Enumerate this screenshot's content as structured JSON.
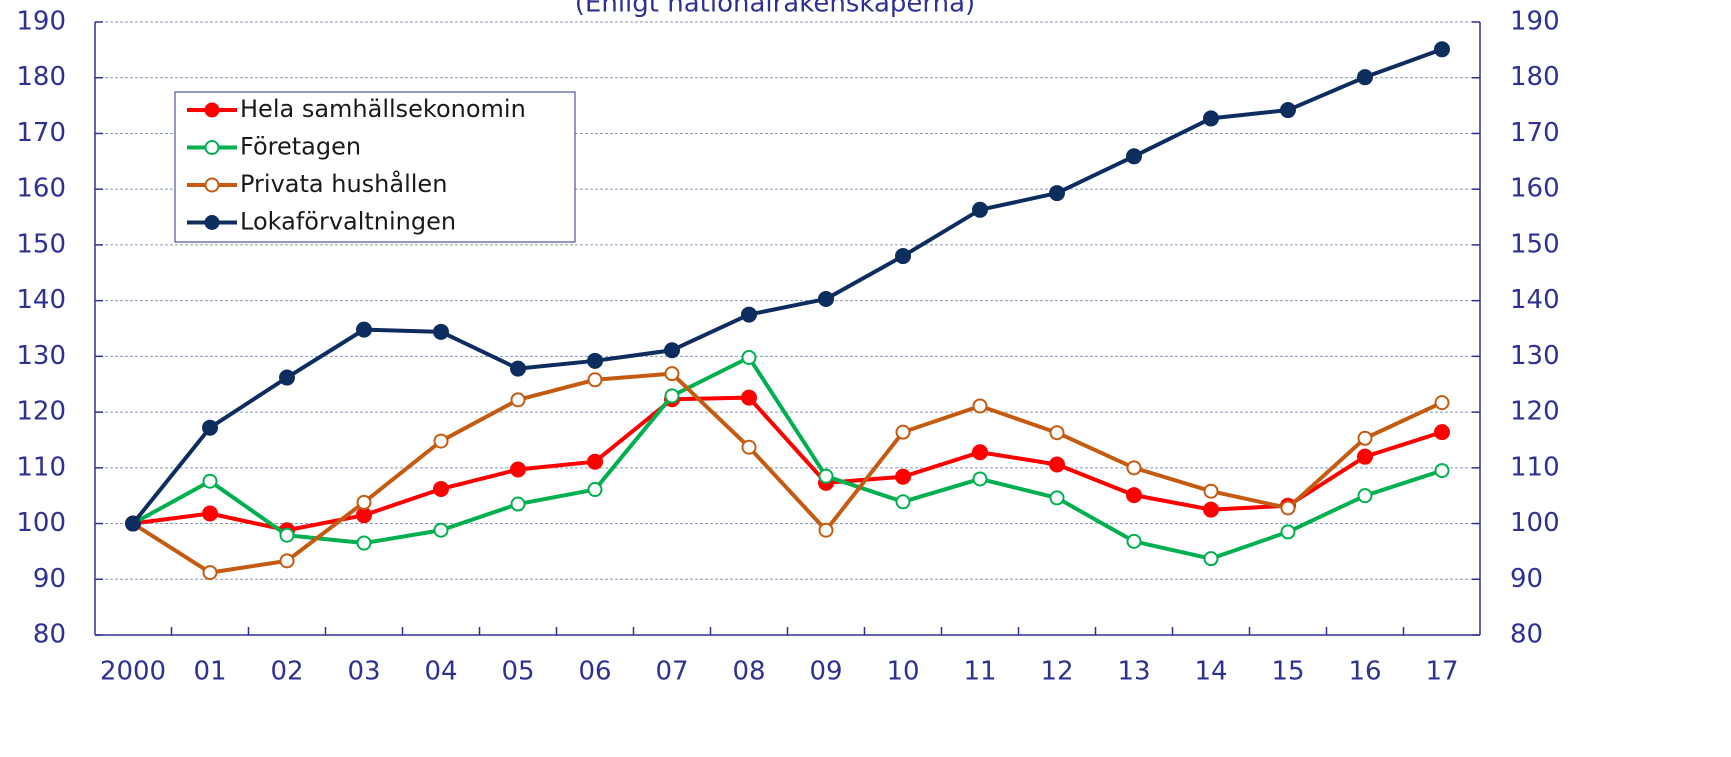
{
  "chart_data": {
    "type": "line",
    "subtitle": "(Enligt nationalräkenskaperna)",
    "categories": [
      "2000",
      "01",
      "02",
      "03",
      "04",
      "05",
      "06",
      "07",
      "08",
      "09",
      "10",
      "11",
      "12",
      "13",
      "14",
      "15",
      "16",
      "17"
    ],
    "series": [
      {
        "name": "Hela samhällsekonomin",
        "color": "#ff0000",
        "marker": "filled",
        "values": [
          100,
          101.8,
          98.8,
          101.5,
          106.2,
          109.7,
          111.1,
          122.3,
          122.6,
          107.3,
          108.4,
          112.8,
          110.6,
          105.1,
          102.5,
          103.2,
          112,
          116.4
        ]
      },
      {
        "name": "Företagen",
        "color": "#00b050",
        "marker": "open",
        "values": [
          100,
          107.6,
          97.9,
          96.5,
          98.8,
          103.5,
          106.1,
          122.9,
          129.8,
          108.5,
          103.9,
          108,
          104.6,
          96.8,
          93.7,
          98.5,
          105,
          109.5
        ]
      },
      {
        "name": "Privata hushållen",
        "color": "#c55a11",
        "marker": "open",
        "values": [
          100,
          91.2,
          93.3,
          103.8,
          114.8,
          122.2,
          125.8,
          126.9,
          113.7,
          98.8,
          116.4,
          121.1,
          116.3,
          110,
          105.8,
          102.8,
          115.3,
          121.7
        ]
      },
      {
        "name": "Lokaförvaltningen",
        "color": "#0d2d5e",
        "marker": "filled",
        "values": [
          100,
          117.2,
          126.2,
          134.8,
          134.4,
          127.8,
          129.2,
          131.1,
          137.5,
          140.3,
          148,
          156.3,
          159.3,
          165.9,
          172.7,
          174.2,
          180.1,
          185.1
        ]
      }
    ],
    "ylim": [
      80,
      190
    ],
    "yticks": [
      80,
      90,
      100,
      110,
      120,
      130,
      140,
      150,
      160,
      170,
      180,
      190
    ],
    "y2lim": [
      80,
      190
    ],
    "y2ticks": [
      80,
      90,
      100,
      110,
      120,
      130,
      140,
      150,
      160,
      170,
      180,
      190
    ],
    "grid": true,
    "legend": "upper left"
  }
}
